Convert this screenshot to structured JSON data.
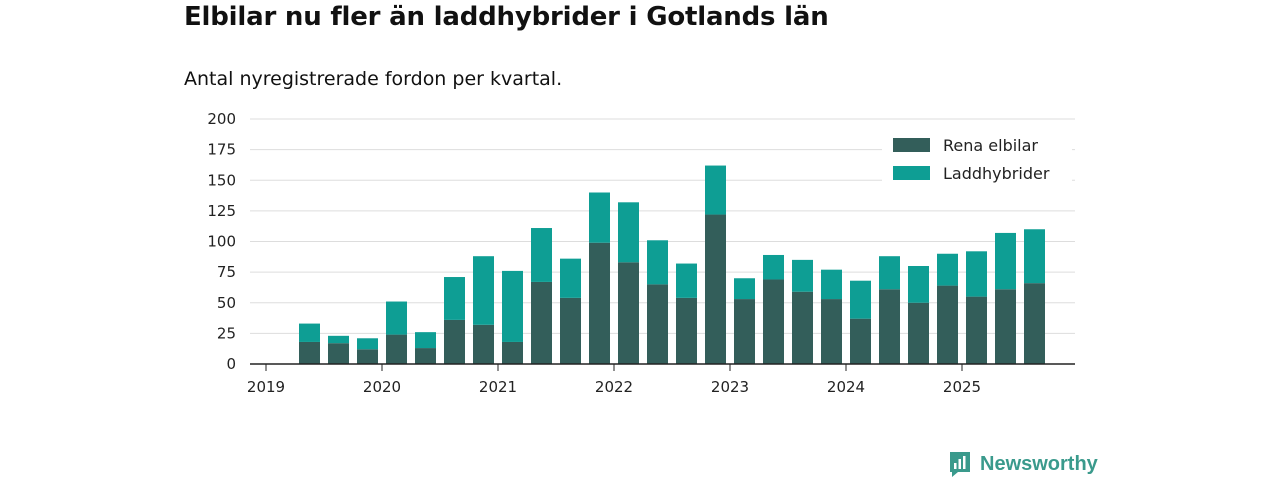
{
  "header": {
    "title": "Elbilar nu fler än laddhybrider i Gotlands län",
    "subtitle": "Antal nyregistrerade fordon per kvartal."
  },
  "brand": {
    "name": "Newsworthy"
  },
  "colors": {
    "elbilar": "#335e5a",
    "laddhybrider": "#0e9e94",
    "grid": "#dddddd",
    "axis": "#222222",
    "brand": "#3a9a8c"
  },
  "chart_data": {
    "type": "bar",
    "stacked": true,
    "categories": [
      "2019 Q2",
      "2019 Q3",
      "2019 Q4",
      "2020 Q1",
      "2020 Q2",
      "2020 Q3",
      "2020 Q4",
      "2021 Q1",
      "2021 Q2",
      "2021 Q3",
      "2021 Q4",
      "2022 Q1",
      "2022 Q2",
      "2022 Q3",
      "2022 Q4",
      "2023 Q1",
      "2023 Q2",
      "2023 Q3",
      "2023 Q4",
      "2024 Q1",
      "2024 Q2",
      "2024 Q3",
      "2024 Q4",
      "2025 Q1",
      "2025 Q2",
      "2025 Q3"
    ],
    "series": [
      {
        "name": "Rena elbilar",
        "values": [
          18,
          17,
          12,
          24,
          13,
          36,
          32,
          18,
          67,
          54,
          99,
          83,
          65,
          54,
          122,
          53,
          69,
          59,
          53,
          37,
          61,
          50,
          64,
          55,
          61,
          66
        ]
      },
      {
        "name": "Laddhybrider",
        "values": [
          15,
          6,
          9,
          27,
          13,
          35,
          56,
          58,
          44,
          32,
          41,
          49,
          36,
          28,
          40,
          17,
          20,
          26,
          24,
          31,
          27,
          30,
          26,
          37,
          46,
          44
        ]
      }
    ],
    "x_ticks": [
      "2019",
      "2020",
      "2021",
      "2022",
      "2023",
      "2024",
      "2025"
    ],
    "y_ticks": [
      0,
      25,
      50,
      75,
      100,
      125,
      150,
      175,
      200
    ],
    "ylim": [
      0,
      200
    ],
    "grid": true,
    "legend_position": "top-right"
  }
}
